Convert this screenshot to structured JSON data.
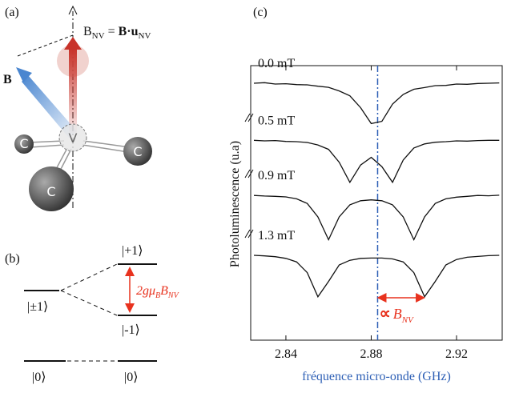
{
  "panels": {
    "a": {
      "label": "(a)",
      "projection": {
        "lhs": "B",
        "lhs_sub": "NV",
        "eq": " = ",
        "rhs": "B·u",
        "rhs_sub": "NV"
      },
      "field": "B",
      "atoms": [
        "C",
        "C",
        "C",
        "V"
      ]
    },
    "b": {
      "label": "(b)",
      "levels": {
        "plus": "|+1⟩",
        "pm": "|±1⟩",
        "minus": "|-1⟩",
        "zero_left": "|0⟩",
        "zero_right": "|0⟩"
      },
      "splitting": {
        "main": "2gμ",
        "sub1": "B",
        "main2": "B",
        "sub2": "NV"
      }
    }
  },
  "chart_data": {
    "type": "line",
    "panel_label": "(c)",
    "xlabel": "fréquence micro-onde (GHz)",
    "ylabel": "Photoluminescence (u.a)",
    "x": [
      2.825,
      2.83,
      2.835,
      2.84,
      2.845,
      2.85,
      2.855,
      2.86,
      2.865,
      2.87,
      2.875,
      2.88,
      2.885,
      2.89,
      2.895,
      2.9,
      2.905,
      2.91,
      2.915,
      2.92,
      2.925,
      2.93,
      2.935,
      2.94
    ],
    "xlim": [
      2.8235,
      2.9414
    ],
    "xticks": [
      2.84,
      2.88,
      2.92
    ],
    "ylim": [
      0,
      10
    ],
    "series": [
      {
        "name": "0.0 mT",
        "color": "#111111",
        "values": [
          9.36,
          9.38,
          9.33,
          9.34,
          9.31,
          9.3,
          9.25,
          9.21,
          9.08,
          8.9,
          8.47,
          7.89,
          7.97,
          8.6,
          8.95,
          9.14,
          9.2,
          9.27,
          9.28,
          9.33,
          9.32,
          9.35,
          9.36,
          9.37
        ]
      },
      {
        "name": "0.5 mT",
        "color": "#111111",
        "values": [
          7.28,
          7.26,
          7.27,
          7.24,
          7.23,
          7.2,
          7.11,
          6.95,
          6.48,
          5.75,
          6.38,
          6.66,
          6.32,
          5.75,
          6.56,
          7.0,
          7.15,
          7.21,
          7.23,
          7.26,
          7.25,
          7.27,
          7.28,
          7.28
        ]
      },
      {
        "name": "0.9 mT",
        "color": "#111111",
        "values": [
          5.27,
          5.25,
          5.24,
          5.22,
          5.15,
          4.98,
          4.49,
          3.66,
          4.49,
          4.93,
          5.08,
          5.11,
          5.08,
          4.93,
          4.49,
          3.66,
          4.49,
          4.98,
          5.15,
          5.21,
          5.24,
          5.27,
          5.26,
          5.28
        ]
      },
      {
        "name": "1.3 mT",
        "color": "#111111",
        "values": [
          3.09,
          3.07,
          3.04,
          2.98,
          2.85,
          2.46,
          1.58,
          2.14,
          2.74,
          2.91,
          2.98,
          2.99,
          2.99,
          2.96,
          2.85,
          2.46,
          1.58,
          2.14,
          2.74,
          2.94,
          3.02,
          3.05,
          3.08,
          3.09
        ]
      }
    ],
    "marker_line": {
      "x": 2.883,
      "color": "#2d5fb5"
    },
    "annotation": {
      "x": [
        2.883,
        2.905
      ],
      "symbol": "∝",
      "main": "B",
      "sub": "NV",
      "color": "#e8321e"
    }
  }
}
